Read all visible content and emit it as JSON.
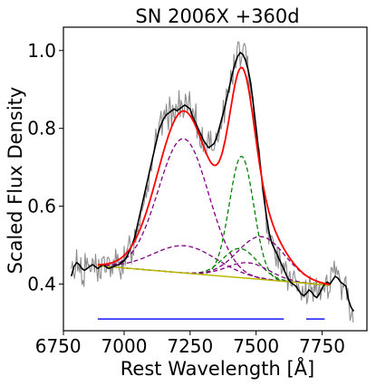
{
  "chart_data": {
    "type": "line",
    "title": "SN 2006X  +360d",
    "xlabel": "Rest Wavelength [Å]",
    "ylabel": "Scaled Flux Density",
    "xlim": [
      6770,
      7920
    ],
    "ylim": [
      0.28,
      1.06
    ],
    "xticks": [
      6750,
      7000,
      7250,
      7500,
      7750
    ],
    "yticks": [
      0.4,
      0.6,
      0.8,
      1.0
    ],
    "xtick_labels": [
      "6750",
      "7000",
      "7250",
      "7500",
      "7750"
    ],
    "ytick_labels": [
      "0.4",
      "0.6",
      "0.8",
      "1.0"
    ],
    "grid": false,
    "continuum": [
      [
        6900,
        0.447
      ],
      [
        7780,
        0.397
      ]
    ],
    "components": [
      {
        "style": "purple-dashed",
        "center": 7225,
        "amplitude": 0.345,
        "sigma": 95
      },
      {
        "style": "purple-dashed",
        "center": 7230,
        "amplitude": 0.07,
        "sigma": 120
      },
      {
        "style": "green-dashed",
        "center": 7445,
        "amplitude": 0.312,
        "sigma": 46
      },
      {
        "style": "green-dashed",
        "center": 7440,
        "amplitude": 0.075,
        "sigma": 65
      },
      {
        "style": "purple-dashed",
        "center": 7520,
        "amplitude": 0.11,
        "sigma": 90
      },
      {
        "style": "purple-dashed",
        "center": 7470,
        "amplitude": 0.04,
        "sigma": 80
      }
    ],
    "fit_range": [
      6900,
      7780
    ],
    "observed_smoothed": [
      [
        6800,
        0.42
      ],
      [
        6810,
        0.445
      ],
      [
        6820,
        0.455
      ],
      [
        6830,
        0.45
      ],
      [
        6840,
        0.44
      ],
      [
        6850,
        0.435
      ],
      [
        6860,
        0.44
      ],
      [
        6870,
        0.445
      ],
      [
        6880,
        0.45
      ],
      [
        6890,
        0.445
      ],
      [
        6900,
        0.44
      ],
      [
        6910,
        0.445
      ],
      [
        6920,
        0.45
      ],
      [
        6930,
        0.445
      ],
      [
        6940,
        0.44
      ],
      [
        6950,
        0.442
      ],
      [
        6960,
        0.445
      ],
      [
        6970,
        0.448
      ],
      [
        6980,
        0.45
      ],
      [
        6990,
        0.455
      ],
      [
        7000,
        0.46
      ],
      [
        7010,
        0.47
      ],
      [
        7020,
        0.485
      ],
      [
        7030,
        0.5
      ],
      [
        7040,
        0.52
      ],
      [
        7050,
        0.55
      ],
      [
        7060,
        0.58
      ],
      [
        7070,
        0.61
      ],
      [
        7080,
        0.64
      ],
      [
        7090,
        0.67
      ],
      [
        7100,
        0.7
      ],
      [
        7110,
        0.73
      ],
      [
        7120,
        0.76
      ],
      [
        7130,
        0.79
      ],
      [
        7140,
        0.81
      ],
      [
        7150,
        0.825
      ],
      [
        7160,
        0.835
      ],
      [
        7170,
        0.84
      ],
      [
        7180,
        0.845
      ],
      [
        7190,
        0.85
      ],
      [
        7200,
        0.845
      ],
      [
        7210,
        0.85
      ],
      [
        7220,
        0.855
      ],
      [
        7230,
        0.86
      ],
      [
        7240,
        0.855
      ],
      [
        7250,
        0.85
      ],
      [
        7260,
        0.83
      ],
      [
        7270,
        0.815
      ],
      [
        7280,
        0.8
      ],
      [
        7290,
        0.785
      ],
      [
        7300,
        0.77
      ],
      [
        7310,
        0.76
      ],
      [
        7320,
        0.75
      ],
      [
        7330,
        0.755
      ],
      [
        7340,
        0.76
      ],
      [
        7350,
        0.775
      ],
      [
        7360,
        0.8
      ],
      [
        7370,
        0.825
      ],
      [
        7380,
        0.85
      ],
      [
        7390,
        0.88
      ],
      [
        7400,
        0.91
      ],
      [
        7410,
        0.94
      ],
      [
        7420,
        0.965
      ],
      [
        7430,
        0.985
      ],
      [
        7440,
        0.995
      ],
      [
        7450,
        0.99
      ],
      [
        7460,
        0.975
      ],
      [
        7470,
        0.95
      ],
      [
        7480,
        0.915
      ],
      [
        7490,
        0.86
      ],
      [
        7500,
        0.8
      ],
      [
        7510,
        0.74
      ],
      [
        7520,
        0.68
      ],
      [
        7530,
        0.62
      ],
      [
        7540,
        0.57
      ],
      [
        7550,
        0.53
      ],
      [
        7560,
        0.505
      ],
      [
        7570,
        0.49
      ],
      [
        7580,
        0.475
      ],
      [
        7590,
        0.46
      ],
      [
        7600,
        0.445
      ],
      [
        7610,
        0.43
      ],
      [
        7620,
        0.415
      ],
      [
        7630,
        0.405
      ],
      [
        7640,
        0.4
      ],
      [
        7650,
        0.395
      ],
      [
        7660,
        0.385
      ],
      [
        7670,
        0.375
      ],
      [
        7680,
        0.37
      ],
      [
        7690,
        0.375
      ],
      [
        7700,
        0.385
      ],
      [
        7710,
        0.38
      ],
      [
        7720,
        0.37
      ],
      [
        7730,
        0.365
      ],
      [
        7740,
        0.375
      ],
      [
        7750,
        0.39
      ],
      [
        7760,
        0.4
      ],
      [
        7770,
        0.405
      ],
      [
        7780,
        0.4
      ],
      [
        7790,
        0.41
      ],
      [
        7800,
        0.42
      ],
      [
        7810,
        0.415
      ],
      [
        7820,
        0.405
      ],
      [
        7830,
        0.4
      ],
      [
        7840,
        0.395
      ],
      [
        7850,
        0.36
      ],
      [
        7860,
        0.34
      ],
      [
        7870,
        0.33
      ]
    ],
    "fit_regions_y": 0.31,
    "fit_regions": [
      [
        6900,
        7605
      ],
      [
        7690,
        7760
      ]
    ]
  },
  "colors": {
    "raw": "#8c8c8c",
    "smoothed": "#000000",
    "fit": "#ff0000",
    "purple": "#800080",
    "green": "#008000",
    "continuum": "#b8b800",
    "regions": "#0000ff",
    "axes": "#000000"
  }
}
